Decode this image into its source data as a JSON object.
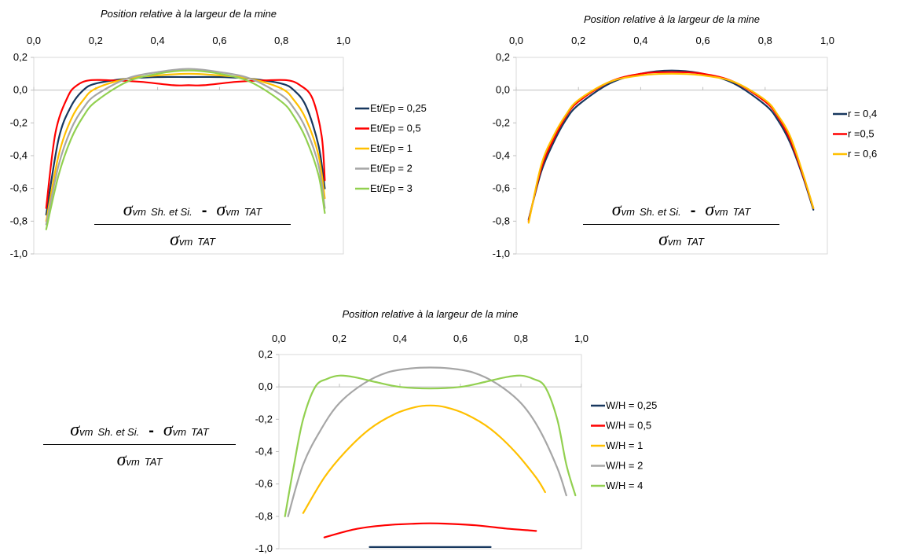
{
  "fraction_text": {
    "sigma": "σ",
    "vm": "vm",
    "sub_sh": "Sh. et Si.",
    "minus": "-",
    "sub_tat": "TAT"
  },
  "chart_data": [
    {
      "type": "line",
      "title": "Position relative à la largeur de la mine",
      "xlabel": "Position relative à la largeur de la mine",
      "ylabel": "",
      "xlim": [
        0,
        1
      ],
      "ylim": [
        -1,
        0.2
      ],
      "xticks": [
        "0,0",
        "0,2",
        "0,4",
        "0,6",
        "0,8",
        "1,0"
      ],
      "yticks": [
        "0,2",
        "0,0",
        "-0,2",
        "-0,4",
        "-0,6",
        "-0,8",
        "-1,0"
      ],
      "legend_position": "right",
      "grid": false,
      "series": [
        {
          "name": "Et/Ep = 0,25",
          "color": "#17375e",
          "values": [
            [
              0.04,
              -0.76
            ],
            [
              0.08,
              -0.3
            ],
            [
              0.12,
              -0.1
            ],
            [
              0.16,
              0.0
            ],
            [
              0.2,
              0.04
            ],
            [
              0.3,
              0.07
            ],
            [
              0.4,
              0.08
            ],
            [
              0.5,
              0.08
            ],
            [
              0.6,
              0.08
            ],
            [
              0.7,
              0.07
            ],
            [
              0.8,
              0.04
            ],
            [
              0.84,
              0.0
            ],
            [
              0.88,
              -0.1
            ],
            [
              0.92,
              -0.34
            ],
            [
              0.94,
              -0.6
            ]
          ]
        },
        {
          "name": "Et/Ep = 0,5",
          "color": "#ff0000",
          "values": [
            [
              0.04,
              -0.72
            ],
            [
              0.07,
              -0.26
            ],
            [
              0.11,
              -0.04
            ],
            [
              0.14,
              0.03
            ],
            [
              0.18,
              0.06
            ],
            [
              0.25,
              0.06
            ],
            [
              0.35,
              0.05
            ],
            [
              0.45,
              0.03
            ],
            [
              0.5,
              0.03
            ],
            [
              0.55,
              0.03
            ],
            [
              0.65,
              0.05
            ],
            [
              0.75,
              0.06
            ],
            [
              0.82,
              0.06
            ],
            [
              0.86,
              0.03
            ],
            [
              0.9,
              -0.05
            ],
            [
              0.93,
              -0.28
            ],
            [
              0.94,
              -0.55
            ]
          ]
        },
        {
          "name": "Et/Ep = 1",
          "color": "#ffc000",
          "values": [
            [
              0.04,
              -0.8
            ],
            [
              0.08,
              -0.4
            ],
            [
              0.12,
              -0.18
            ],
            [
              0.16,
              -0.06
            ],
            [
              0.2,
              0.01
            ],
            [
              0.3,
              0.07
            ],
            [
              0.4,
              0.09
            ],
            [
              0.5,
              0.1
            ],
            [
              0.6,
              0.09
            ],
            [
              0.7,
              0.07
            ],
            [
              0.8,
              0.01
            ],
            [
              0.84,
              -0.06
            ],
            [
              0.88,
              -0.18
            ],
            [
              0.92,
              -0.4
            ],
            [
              0.94,
              -0.66
            ]
          ]
        },
        {
          "name": "Et/Ep = 2",
          "color": "#a6a6a6",
          "values": [
            [
              0.04,
              -0.82
            ],
            [
              0.08,
              -0.46
            ],
            [
              0.12,
              -0.24
            ],
            [
              0.16,
              -0.11
            ],
            [
              0.2,
              -0.03
            ],
            [
              0.3,
              0.07
            ],
            [
              0.4,
              0.11
            ],
            [
              0.5,
              0.13
            ],
            [
              0.6,
              0.11
            ],
            [
              0.7,
              0.07
            ],
            [
              0.8,
              -0.03
            ],
            [
              0.84,
              -0.11
            ],
            [
              0.88,
              -0.24
            ],
            [
              0.92,
              -0.46
            ],
            [
              0.94,
              -0.72
            ]
          ]
        },
        {
          "name": "Et/Ep = 3",
          "color": "#92d050",
          "values": [
            [
              0.04,
              -0.85
            ],
            [
              0.08,
              -0.52
            ],
            [
              0.12,
              -0.3
            ],
            [
              0.16,
              -0.16
            ],
            [
              0.2,
              -0.07
            ],
            [
              0.3,
              0.05
            ],
            [
              0.4,
              0.1
            ],
            [
              0.5,
              0.12
            ],
            [
              0.6,
              0.1
            ],
            [
              0.7,
              0.05
            ],
            [
              0.8,
              -0.07
            ],
            [
              0.84,
              -0.16
            ],
            [
              0.88,
              -0.3
            ],
            [
              0.92,
              -0.52
            ],
            [
              0.94,
              -0.75
            ]
          ]
        }
      ]
    },
    {
      "type": "line",
      "title": "Position relative à la largeur de la mine",
      "xlabel": "Position relative à la largeur de la mine",
      "ylabel": "",
      "xlim": [
        0,
        1
      ],
      "ylim": [
        -1,
        0.2
      ],
      "xticks": [
        "0,0",
        "0,2",
        "0,4",
        "0,6",
        "0,8",
        "1,0"
      ],
      "yticks": [
        "0,2",
        "0,0",
        "-0,2",
        "-0,4",
        "-0,6",
        "-0,8",
        "-1,0"
      ],
      "legend_position": "right",
      "grid": false,
      "series": [
        {
          "name": "r = 0,4",
          "color": "#17375e",
          "values": [
            [
              0.04,
              -0.79
            ],
            [
              0.08,
              -0.5
            ],
            [
              0.12,
              -0.32
            ],
            [
              0.16,
              -0.18
            ],
            [
              0.2,
              -0.09
            ],
            [
              0.3,
              0.04
            ],
            [
              0.4,
              0.1
            ],
            [
              0.5,
              0.12
            ],
            [
              0.6,
              0.1
            ],
            [
              0.7,
              0.04
            ],
            [
              0.8,
              -0.09
            ],
            [
              0.84,
              -0.18
            ],
            [
              0.88,
              -0.32
            ],
            [
              0.92,
              -0.52
            ],
            [
              0.955,
              -0.73
            ]
          ]
        },
        {
          "name": "r =0,5",
          "color": "#ff0000",
          "values": [
            [
              0.04,
              -0.8
            ],
            [
              0.08,
              -0.48
            ],
            [
              0.12,
              -0.3
            ],
            [
              0.16,
              -0.16
            ],
            [
              0.2,
              -0.07
            ],
            [
              0.3,
              0.05
            ],
            [
              0.4,
              0.1
            ],
            [
              0.5,
              0.11
            ],
            [
              0.6,
              0.1
            ],
            [
              0.7,
              0.05
            ],
            [
              0.8,
              -0.07
            ],
            [
              0.84,
              -0.16
            ],
            [
              0.88,
              -0.3
            ],
            [
              0.92,
              -0.51
            ],
            [
              0.955,
              -0.72
            ]
          ]
        },
        {
          "name": "r = 0,6",
          "color": "#ffc000",
          "values": [
            [
              0.04,
              -0.81
            ],
            [
              0.08,
              -0.46
            ],
            [
              0.12,
              -0.28
            ],
            [
              0.16,
              -0.15
            ],
            [
              0.2,
              -0.06
            ],
            [
              0.3,
              0.05
            ],
            [
              0.4,
              0.09
            ],
            [
              0.5,
              0.1
            ],
            [
              0.6,
              0.09
            ],
            [
              0.7,
              0.05
            ],
            [
              0.8,
              -0.06
            ],
            [
              0.84,
              -0.15
            ],
            [
              0.88,
              -0.28
            ],
            [
              0.92,
              -0.5
            ],
            [
              0.955,
              -0.72
            ]
          ]
        }
      ]
    },
    {
      "type": "line",
      "title": "Position relative à la largeur de la mine",
      "xlabel": "Position relative à la largeur de la mine",
      "ylabel": "",
      "xlim": [
        0,
        1
      ],
      "ylim": [
        -1,
        0.2
      ],
      "xticks": [
        "0,0",
        "0,2",
        "0,4",
        "0,6",
        "0,8",
        "1,0"
      ],
      "yticks": [
        "0,2",
        "0,0",
        "-0,2",
        "-0,4",
        "-0,6",
        "-0,8",
        "-1,0"
      ],
      "legend_position": "right",
      "grid": false,
      "series": [
        {
          "name": "W/H = 0,25",
          "color": "#17375e",
          "values": [
            [
              0.3,
              -0.99
            ],
            [
              0.4,
              -0.99
            ],
            [
              0.5,
              -0.99
            ],
            [
              0.6,
              -0.99
            ],
            [
              0.7,
              -0.99
            ]
          ]
        },
        {
          "name": "W/H = 0,5",
          "color": "#ff0000",
          "values": [
            [
              0.15,
              -0.93
            ],
            [
              0.25,
              -0.88
            ],
            [
              0.35,
              -0.855
            ],
            [
              0.45,
              -0.845
            ],
            [
              0.5,
              -0.843
            ],
            [
              0.55,
              -0.845
            ],
            [
              0.65,
              -0.855
            ],
            [
              0.75,
              -0.875
            ],
            [
              0.85,
              -0.89
            ]
          ]
        },
        {
          "name": "W/H = 1",
          "color": "#ffc000",
          "values": [
            [
              0.08,
              -0.78
            ],
            [
              0.15,
              -0.56
            ],
            [
              0.22,
              -0.4
            ],
            [
              0.3,
              -0.26
            ],
            [
              0.38,
              -0.17
            ],
            [
              0.45,
              -0.125
            ],
            [
              0.5,
              -0.115
            ],
            [
              0.55,
              -0.125
            ],
            [
              0.62,
              -0.17
            ],
            [
              0.7,
              -0.26
            ],
            [
              0.78,
              -0.4
            ],
            [
              0.85,
              -0.56
            ],
            [
              0.88,
              -0.65
            ]
          ]
        },
        {
          "name": "W/H = 2",
          "color": "#a6a6a6",
          "values": [
            [
              0.03,
              -0.8
            ],
            [
              0.08,
              -0.48
            ],
            [
              0.14,
              -0.26
            ],
            [
              0.2,
              -0.1
            ],
            [
              0.28,
              0.02
            ],
            [
              0.36,
              0.09
            ],
            [
              0.44,
              0.115
            ],
            [
              0.5,
              0.12
            ],
            [
              0.56,
              0.115
            ],
            [
              0.64,
              0.09
            ],
            [
              0.72,
              0.02
            ],
            [
              0.8,
              -0.1
            ],
            [
              0.86,
              -0.26
            ],
            [
              0.92,
              -0.5
            ],
            [
              0.95,
              -0.67
            ]
          ]
        },
        {
          "name": "W/H = 4",
          "color": "#92d050",
          "values": [
            [
              0.02,
              -0.8
            ],
            [
              0.05,
              -0.48
            ],
            [
              0.08,
              -0.2
            ],
            [
              0.12,
              0.0
            ],
            [
              0.16,
              0.05
            ],
            [
              0.2,
              0.07
            ],
            [
              0.25,
              0.06
            ],
            [
              0.32,
              0.03
            ],
            [
              0.4,
              0.0
            ],
            [
              0.5,
              -0.01
            ],
            [
              0.6,
              0.0
            ],
            [
              0.68,
              0.03
            ],
            [
              0.75,
              0.06
            ],
            [
              0.8,
              0.07
            ],
            [
              0.84,
              0.05
            ],
            [
              0.88,
              0.0
            ],
            [
              0.92,
              -0.2
            ],
            [
              0.95,
              -0.48
            ],
            [
              0.98,
              -0.67
            ]
          ]
        }
      ]
    }
  ]
}
